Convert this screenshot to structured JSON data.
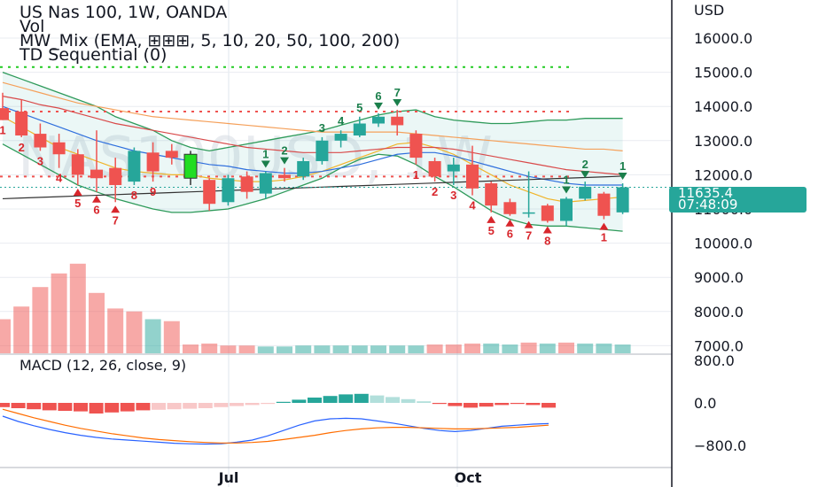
{
  "legend": {
    "line1": "US Nas 100, 1W, OANDA",
    "line2": "Vol",
    "line3": "MW_Mix (EMA, ⊞⊞⊞, 5, 10, 20, 50, 100, 200)",
    "line4": "TD Sequential (0)"
  },
  "watermark": "NAS100USD, 1W",
  "price_tag": {
    "price": "11635.4",
    "countdown": "07:48:09"
  },
  "colors": {
    "up": "#26a69a",
    "down": "#ef5350",
    "highlight": "#22dd22",
    "panel_bg": "#ffffff",
    "grid": "#e9ecf1"
  },
  "chart_data": [
    {
      "type": "candlestick",
      "title": "US Nas 100, 1W, OANDA",
      "y_axis_label": "USD",
      "y_ticks": [
        "16000.0",
        "15000.0",
        "14000.0",
        "13000.0",
        "12000.0",
        "11000.0",
        "10000.0",
        "9000.0",
        "8000.0",
        "7000.0"
      ],
      "x_ticks": [
        "Jul",
        "Oct"
      ],
      "ylim": [
        6950,
        16900
      ],
      "candles": [
        {
          "o": 13950,
          "h": 14400,
          "l": 13600,
          "c": 13600
        },
        {
          "o": 13850,
          "h": 14200,
          "l": 13100,
          "c": 13150
        },
        {
          "o": 13200,
          "h": 13500,
          "l": 12700,
          "c": 12800
        },
        {
          "o": 12950,
          "h": 13200,
          "l": 12200,
          "c": 12600
        },
        {
          "o": 12600,
          "h": 12750,
          "l": 11700,
          "c": 12000
        },
        {
          "o": 12150,
          "h": 13300,
          "l": 11500,
          "c": 11900
        },
        {
          "o": 12200,
          "h": 12500,
          "l": 11200,
          "c": 11700
        },
        {
          "o": 11800,
          "h": 12800,
          "l": 11700,
          "c": 12700
        },
        {
          "o": 12650,
          "h": 12950,
          "l": 11800,
          "c": 12100
        },
        {
          "o": 12700,
          "h": 12900,
          "l": 12300,
          "c": 12500
        },
        {
          "o": 11900,
          "h": 12700,
          "l": 11700,
          "c": 12600,
          "highlight": true
        },
        {
          "o": 11850,
          "h": 11900,
          "l": 10950,
          "c": 11150
        },
        {
          "o": 11200,
          "h": 12000,
          "l": 11100,
          "c": 11900
        },
        {
          "o": 11950,
          "h": 12100,
          "l": 11300,
          "c": 11500
        },
        {
          "o": 11450,
          "h": 12100,
          "l": 11300,
          "c": 12050
        },
        {
          "o": 12000,
          "h": 12200,
          "l": 11800,
          "c": 11900
        },
        {
          "o": 11950,
          "h": 12500,
          "l": 11850,
          "c": 12400
        },
        {
          "o": 12400,
          "h": 13100,
          "l": 12300,
          "c": 13000
        },
        {
          "o": 13000,
          "h": 13300,
          "l": 12800,
          "c": 13200
        },
        {
          "o": 13150,
          "h": 13700,
          "l": 13100,
          "c": 13500
        },
        {
          "o": 13500,
          "h": 13800,
          "l": 13400,
          "c": 13700
        },
        {
          "o": 13700,
          "h": 13900,
          "l": 13150,
          "c": 13450
        },
        {
          "o": 13200,
          "h": 13300,
          "l": 12300,
          "c": 12500
        },
        {
          "o": 12400,
          "h": 12500,
          "l": 11800,
          "c": 11950
        },
        {
          "o": 12100,
          "h": 12500,
          "l": 11700,
          "c": 12300
        },
        {
          "o": 12300,
          "h": 12850,
          "l": 11400,
          "c": 11600
        },
        {
          "o": 11750,
          "h": 11800,
          "l": 10900,
          "c": 11100
        },
        {
          "o": 11200,
          "h": 11300,
          "l": 10800,
          "c": 10850
        },
        {
          "o": 10900,
          "h": 12100,
          "l": 10750,
          "c": 10900
        },
        {
          "o": 11100,
          "h": 11150,
          "l": 10600,
          "c": 10650
        },
        {
          "o": 10650,
          "h": 11350,
          "l": 10500,
          "c": 11300
        },
        {
          "o": 11300,
          "h": 11800,
          "l": 11250,
          "c": 11650
        },
        {
          "o": 11450,
          "h": 11500,
          "l": 10700,
          "c": 10800
        },
        {
          "o": 10900,
          "h": 11750,
          "l": 10850,
          "c": 11635
        }
      ],
      "td_labels": [
        {
          "i": 0,
          "text": "1",
          "pos": "below",
          "color": "down"
        },
        {
          "i": 1,
          "text": "2",
          "pos": "below",
          "color": "down"
        },
        {
          "i": 2,
          "text": "3",
          "pos": "below",
          "color": "down"
        },
        {
          "i": 3,
          "text": "4",
          "pos": "below",
          "color": "down"
        },
        {
          "i": 4,
          "text": "5",
          "pos": "below",
          "color": "down",
          "arrow": true
        },
        {
          "i": 5,
          "text": "6",
          "pos": "below",
          "color": "down",
          "arrow": true
        },
        {
          "i": 6,
          "text": "7",
          "pos": "below",
          "color": "down",
          "arrow": true
        },
        {
          "i": 7,
          "text": "8",
          "pos": "below",
          "color": "down"
        },
        {
          "i": 8,
          "text": "9",
          "pos": "below",
          "color": "down"
        },
        {
          "i": 14,
          "text": "1",
          "pos": "above",
          "color": "up",
          "arrow": true
        },
        {
          "i": 15,
          "text": "2",
          "pos": "above",
          "color": "up",
          "arrow": true
        },
        {
          "i": 17,
          "text": "3",
          "pos": "above",
          "color": "up"
        },
        {
          "i": 18,
          "text": "4",
          "pos": "above",
          "color": "up"
        },
        {
          "i": 19,
          "text": "5",
          "pos": "above",
          "color": "up"
        },
        {
          "i": 20,
          "text": "6",
          "pos": "above",
          "color": "up",
          "arrow": true
        },
        {
          "i": 21,
          "text": "7",
          "pos": "above",
          "color": "up",
          "arrow": true
        },
        {
          "i": 22,
          "text": "1",
          "pos": "below",
          "color": "down"
        },
        {
          "i": 23,
          "text": "2",
          "pos": "below",
          "color": "down"
        },
        {
          "i": 24,
          "text": "3",
          "pos": "below",
          "color": "down"
        },
        {
          "i": 25,
          "text": "4",
          "pos": "below",
          "color": "down"
        },
        {
          "i": 26,
          "text": "5",
          "pos": "below",
          "color": "down",
          "arrow": true
        },
        {
          "i": 27,
          "text": "6",
          "pos": "below",
          "color": "down",
          "arrow": true
        },
        {
          "i": 28,
          "text": "7",
          "pos": "below",
          "color": "down",
          "arrow": true
        },
        {
          "i": 29,
          "text": "8",
          "pos": "below",
          "color": "down",
          "arrow": true
        },
        {
          "i": 30,
          "text": "1",
          "pos": "above",
          "color": "up",
          "arrow": true
        },
        {
          "i": 31,
          "text": "2",
          "pos": "above",
          "color": "up",
          "arrow": true
        },
        {
          "i": 32,
          "text": "1",
          "pos": "below",
          "color": "down",
          "arrow": true
        },
        {
          "i": 33,
          "text": "1",
          "pos": "above",
          "color": "up",
          "arrow": true
        }
      ],
      "moving_averages": [
        {
          "color": "#f0b429",
          "values": [
            13700,
            13400,
            13100,
            12800,
            12600,
            12400,
            12200,
            12100,
            12050,
            12000,
            12000,
            11900,
            11850,
            11800,
            11800,
            11850,
            11950,
            12100,
            12300,
            12500,
            12700,
            12900,
            12950,
            12800,
            12600,
            12300,
            12000,
            11700,
            11500,
            11300,
            11200,
            11250,
            11300,
            11350
          ]
        },
        {
          "color": "#2f6fdd",
          "values": [
            14000,
            13800,
            13600,
            13400,
            13200,
            13000,
            12850,
            12700,
            12600,
            12500,
            12400,
            12300,
            12250,
            12150,
            12100,
            12050,
            12050,
            12100,
            12200,
            12300,
            12450,
            12600,
            12650,
            12650,
            12550,
            12400,
            12250,
            12100,
            11950,
            11850,
            11750,
            11700,
            11700,
            11700
          ]
        },
        {
          "color": "#d94a4a",
          "values": [
            14300,
            14200,
            14050,
            13950,
            13800,
            13650,
            13500,
            13400,
            13300,
            13200,
            13100,
            13000,
            12900,
            12800,
            12750,
            12700,
            12650,
            12650,
            12650,
            12700,
            12750,
            12800,
            12800,
            12800,
            12750,
            12650,
            12550,
            12450,
            12350,
            12250,
            12150,
            12100,
            12050,
            12000
          ]
        },
        {
          "color": "#f5a05a",
          "values": [
            14700,
            14550,
            14400,
            14250,
            14100,
            14000,
            13900,
            13800,
            13700,
            13650,
            13600,
            13550,
            13500,
            13450,
            13400,
            13350,
            13300,
            13250,
            13250,
            13250,
            13250,
            13250,
            13200,
            13150,
            13100,
            13050,
            13000,
            12950,
            12900,
            12850,
            12800,
            12750,
            12750,
            12700
          ]
        },
        {
          "color": "#333333",
          "values": [
            11300,
            11320,
            11340,
            11360,
            11380,
            11400,
            11420,
            11440,
            11460,
            11480,
            11500,
            11520,
            11540,
            11560,
            11580,
            11600,
            11620,
            11640,
            11660,
            11680,
            11700,
            11720,
            11740,
            11760,
            11780,
            11800,
            11820,
            11840,
            11860,
            11880,
            11900,
            11920,
            11940,
            11960
          ]
        }
      ],
      "band_upper": [
        15000,
        14800,
        14600,
        14400,
        14200,
        14000,
        13700,
        13500,
        13300,
        13000,
        12800,
        12700,
        12800,
        12900,
        13000,
        13100,
        13200,
        13300,
        13450,
        13600,
        13750,
        13850,
        13900,
        13700,
        13600,
        13550,
        13500,
        13500,
        13550,
        13600,
        13600,
        13650,
        13650,
        13650
      ],
      "band_lower": [
        12900,
        12600,
        12300,
        12000,
        11700,
        11500,
        11300,
        11150,
        11000,
        10900,
        10900,
        10950,
        11000,
        11150,
        11300,
        11500,
        11700,
        11900,
        12200,
        12450,
        12600,
        12550,
        12300,
        11950,
        11650,
        11300,
        10950,
        10700,
        10550,
        10500,
        10500,
        10450,
        10400,
        10350
      ],
      "dashed_levels": [
        {
          "value": 15150,
          "color": "#22cc22"
        },
        {
          "value": 13850,
          "color": "#ef5350"
        },
        {
          "value": 11950,
          "color": "#ef5350"
        }
      ],
      "last_price_line": 11635.4
    },
    {
      "type": "bar",
      "title": "Vol",
      "values": [
        35,
        48,
        68,
        82,
        92,
        62,
        46,
        43,
        35,
        33,
        9,
        10,
        8,
        8,
        7,
        7,
        8,
        8,
        8,
        8,
        8,
        8,
        8,
        9,
        9,
        10,
        10,
        9,
        11,
        10,
        11,
        10,
        10,
        9
      ],
      "colors": [
        "down",
        "down",
        "down",
        "down",
        "down",
        "down",
        "down",
        "down",
        "up",
        "down",
        "down",
        "down",
        "down",
        "down",
        "up",
        "up",
        "up",
        "up",
        "up",
        "up",
        "up",
        "up",
        "up",
        "down",
        "down",
        "down",
        "up",
        "up",
        "down",
        "up",
        "down",
        "up",
        "up",
        "up"
      ]
    },
    {
      "type": "bar",
      "title": "MACD (12, 26, close, 9)",
      "y_ticks": [
        "800.0",
        "0.0",
        "−800.0"
      ],
      "ylim": [
        -1100,
        900
      ],
      "histogram": [
        -80,
        -100,
        -120,
        -140,
        -150,
        -160,
        -200,
        -180,
        -160,
        -140,
        -130,
        -120,
        -110,
        -100,
        -80,
        -60,
        -40,
        -20,
        20,
        60,
        100,
        130,
        160,
        170,
        140,
        110,
        70,
        30,
        -20,
        -60,
        -90,
        -70,
        -40,
        -20,
        -40,
        -90
      ],
      "hist_colors": [
        "down",
        "down",
        "down",
        "down",
        "down",
        "down",
        "down",
        "down",
        "down",
        "down",
        "down",
        "down",
        "down",
        "down",
        "down",
        "down",
        "down",
        "down",
        "up",
        "up",
        "up",
        "up",
        "up",
        "up",
        "up",
        "up",
        "up",
        "up",
        "down",
        "down",
        "down",
        "down",
        "down",
        "down",
        "down",
        "down"
      ],
      "macd": [
        -250,
        -350,
        -430,
        -500,
        -560,
        -610,
        -650,
        -680,
        -700,
        -720,
        -740,
        -760,
        -770,
        -775,
        -770,
        -740,
        -700,
        -620,
        -520,
        -420,
        -340,
        -300,
        -290,
        -300,
        -340,
        -380,
        -430,
        -480,
        -520,
        -540,
        -520,
        -480,
        -440,
        -420,
        -400,
        -390
      ],
      "signal": [
        -120,
        -200,
        -280,
        -350,
        -420,
        -480,
        -530,
        -580,
        -620,
        -660,
        -690,
        -710,
        -730,
        -745,
        -755,
        -755,
        -745,
        -725,
        -690,
        -650,
        -610,
        -560,
        -520,
        -490,
        -470,
        -460,
        -460,
        -470,
        -480,
        -490,
        -490,
        -480,
        -470,
        -460,
        -440,
        -420
      ],
      "x_ticks": [
        "Jul",
        "Oct"
      ]
    }
  ]
}
